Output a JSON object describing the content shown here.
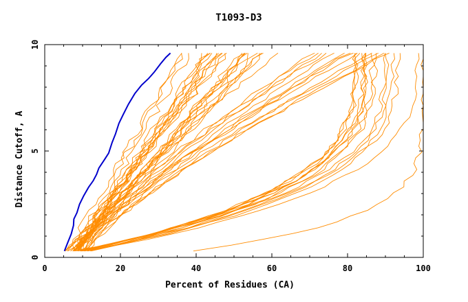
{
  "chart_data": {
    "type": "line",
    "title": "T1093-D3",
    "xlabel": "Percent of Residues (CA)",
    "ylabel": "Distance Cutoff, A",
    "xlim": [
      0,
      100
    ],
    "ylim": [
      0,
      10
    ],
    "xticks": [
      "0",
      "20",
      "40",
      "60",
      "80",
      "100"
    ],
    "yticks": [
      "0",
      "5",
      "10"
    ],
    "grid": false,
    "colors": {
      "models": "#ff8c00",
      "highlight": "#0000cc",
      "axes": "#000000"
    },
    "highlight_series": {
      "x": [
        5.2,
        6.1,
        7.0,
        7.6,
        7.7,
        8.5,
        9.2,
        10.3,
        11.6,
        12.8,
        13.7,
        14.3,
        15.8,
        16.9,
        17.8,
        18.7,
        19.6,
        20.7,
        22.1,
        23.8,
        25.6,
        27.4,
        28.9,
        30.6,
        32.0,
        33.2
      ],
      "y": [
        0.3,
        0.7,
        1.1,
        1.5,
        1.8,
        2.1,
        2.5,
        2.9,
        3.3,
        3.6,
        3.9,
        4.2,
        4.6,
        4.9,
        5.4,
        5.8,
        6.3,
        6.7,
        7.2,
        7.7,
        8.1,
        8.4,
        8.7,
        9.1,
        9.4,
        9.6
      ]
    },
    "model_bundles": [
      {
        "count": 24,
        "x_at_0_3": [
          6,
          9
        ],
        "x_at_9_6": [
          36,
          58
        ],
        "shape": "steep"
      },
      {
        "count": 14,
        "x_at_0_3": [
          8,
          12
        ],
        "x_at_9_6": [
          58,
          92
        ],
        "shape": "moderate"
      },
      {
        "count": 14,
        "x_at_0_3": [
          8,
          12
        ],
        "x_at_9_6": [
          80,
          100
        ],
        "shape": "convex"
      },
      {
        "count": 1,
        "x_at_0_3": [
          40,
          40
        ],
        "x_at_9_6": [
          100,
          100
        ],
        "shape": "outlier"
      }
    ]
  }
}
